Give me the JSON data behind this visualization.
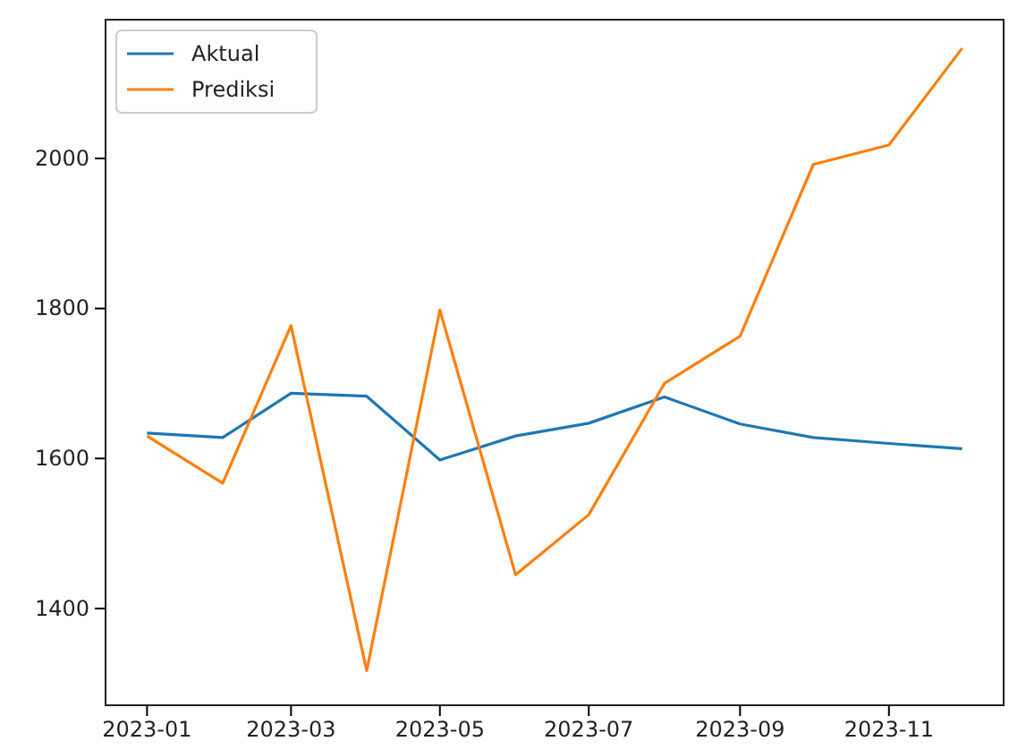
{
  "chart_data": {
    "type": "line",
    "x": [
      "2023-01-01",
      "2023-02-01",
      "2023-03-01",
      "2023-04-01",
      "2023-05-01",
      "2023-06-01",
      "2023-07-01",
      "2023-08-01",
      "2023-09-01",
      "2023-10-01",
      "2023-11-01",
      "2023-12-01"
    ],
    "series": [
      {
        "name": "Aktual",
        "color": "#1f77b4",
        "values": [
          1634,
          1628,
          1687,
          1683,
          1598,
          1630,
          1647,
          1682,
          1646,
          1628,
          1620,
          1613
        ]
      },
      {
        "name": "Prediksi",
        "color": "#ff7f0e",
        "values": [
          1630,
          1567,
          1777,
          1317,
          1798,
          1445,
          1525,
          1700,
          1763,
          1992,
          2018,
          2147
        ]
      }
    ],
    "xlim": [
      "2022-12-15",
      "2023-12-18"
    ],
    "xticks": [
      {
        "value": "2023-01-01",
        "label": "2023-01"
      },
      {
        "value": "2023-03-01",
        "label": "2023-03"
      },
      {
        "value": "2023-05-01",
        "label": "2023-05"
      },
      {
        "value": "2023-07-01",
        "label": "2023-07"
      },
      {
        "value": "2023-09-01",
        "label": "2023-09"
      },
      {
        "value": "2023-11-01",
        "label": "2023-11"
      }
    ],
    "ylim": [
      1271,
      2185
    ],
    "yticks": [
      1400,
      1600,
      1800,
      2000
    ],
    "legend": "top left",
    "grid": false,
    "marker": "none",
    "line_style": "solid"
  }
}
